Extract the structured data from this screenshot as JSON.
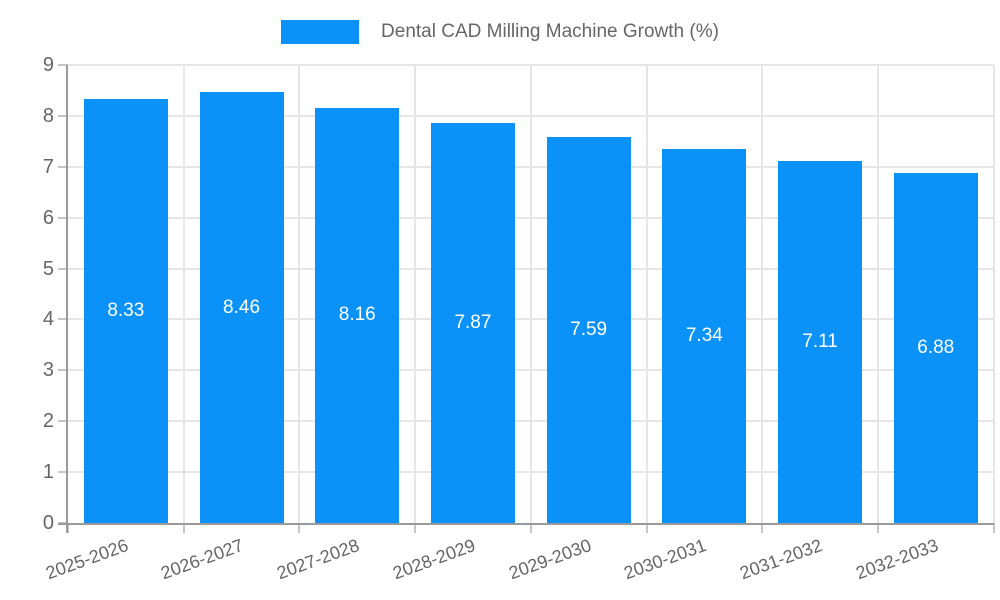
{
  "chart_data": {
    "type": "bar",
    "title": "Dental CAD Milling Machine Growth (%)",
    "legend_position": "top",
    "categories": [
      "2025-2026",
      "2026-2027",
      "2027-2028",
      "2028-2029",
      "2029-2030",
      "2030-2031",
      "2031-2032",
      "2032-2033"
    ],
    "series": [
      {
        "name": "Dental CAD Milling Machine Growth (%)",
        "values": [
          8.33,
          8.46,
          8.16,
          7.87,
          7.59,
          7.34,
          7.11,
          6.88
        ],
        "value_labels": [
          "8.33",
          "8.46",
          "8.16",
          "7.87",
          "7.59",
          "7.34",
          "7.11",
          "6.88"
        ]
      }
    ],
    "xlabel": "",
    "ylabel": "",
    "ylim": [
      0,
      9
    ],
    "y_ticks": [
      "0",
      "1",
      "2",
      "3",
      "4",
      "5",
      "6",
      "7",
      "8",
      "9"
    ],
    "grid": true,
    "colors": {
      "bar": "#0b92f8",
      "bar_value_label": "#ffffff",
      "axis_text": "#666666",
      "gridline": "#e6e6e6",
      "axis_line": "#9a9a9a",
      "tick_mark": "#c6c6c6",
      "background": "#ffffff"
    }
  }
}
